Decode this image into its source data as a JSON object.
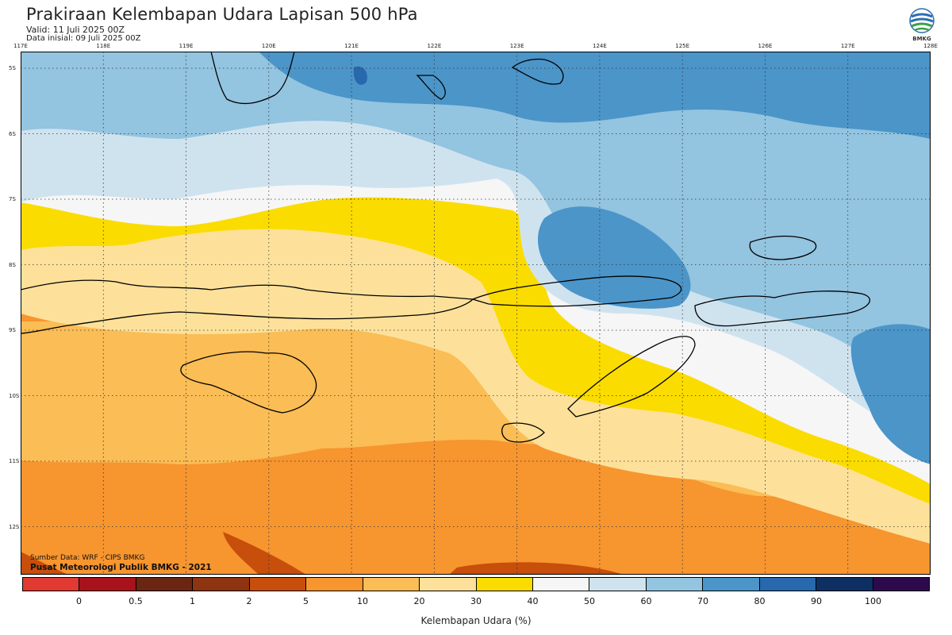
{
  "header": {
    "title": "Prakiraan Kelembapan Udara Lapisan 500 hPa",
    "valid": "Valid: 11 Juli 2025 00Z",
    "init": "Data inisial: 09 Juli 2025 00Z"
  },
  "logo": {
    "text": "BMKG",
    "icon": "bmkg-logo-icon"
  },
  "axes": {
    "x_ticks": [
      "117E",
      "118E",
      "119E",
      "120E",
      "121E",
      "122E",
      "123E",
      "124E",
      "125E",
      "126E",
      "127E",
      "128E"
    ],
    "y_ticks": [
      "5S",
      "6S",
      "7S",
      "8S",
      "9S",
      "10S",
      "11S",
      "12S"
    ]
  },
  "footer": {
    "source": "Sumber Data: WRF - CIPS BMKG",
    "org": "Pusat Meteorologi Publik BMKG - 2021"
  },
  "legend": {
    "title": "Kelembapan Udara (%)",
    "labels": [
      "0",
      "0.5",
      "1",
      "2",
      "5",
      "10",
      "20",
      "30",
      "40",
      "50",
      "60",
      "70",
      "80",
      "90",
      "100"
    ],
    "colors": [
      "#e03a32",
      "#a8131b",
      "#6b2613",
      "#8e3410",
      "#c74e0b",
      "#f7952f",
      "#fbbd55",
      "#fde19a",
      "#fbdc00",
      "#f6f6f6",
      "#cfe3ef",
      "#93c4e0",
      "#4b95c9",
      "#2868ad",
      "#0e2f62",
      "#2d0a4e"
    ]
  },
  "map_colors": {
    "orange_dark": "#f7952f",
    "orange": "#fbbd55",
    "orange_light": "#fde19a",
    "yellow": "#fbdc00",
    "white": "#f6f6f6",
    "blue_pale": "#cfe3ef",
    "blue_light": "#93c4e0",
    "blue": "#4b95c9",
    "blue_dark": "#2868ad",
    "brown": "#c74e0b"
  }
}
